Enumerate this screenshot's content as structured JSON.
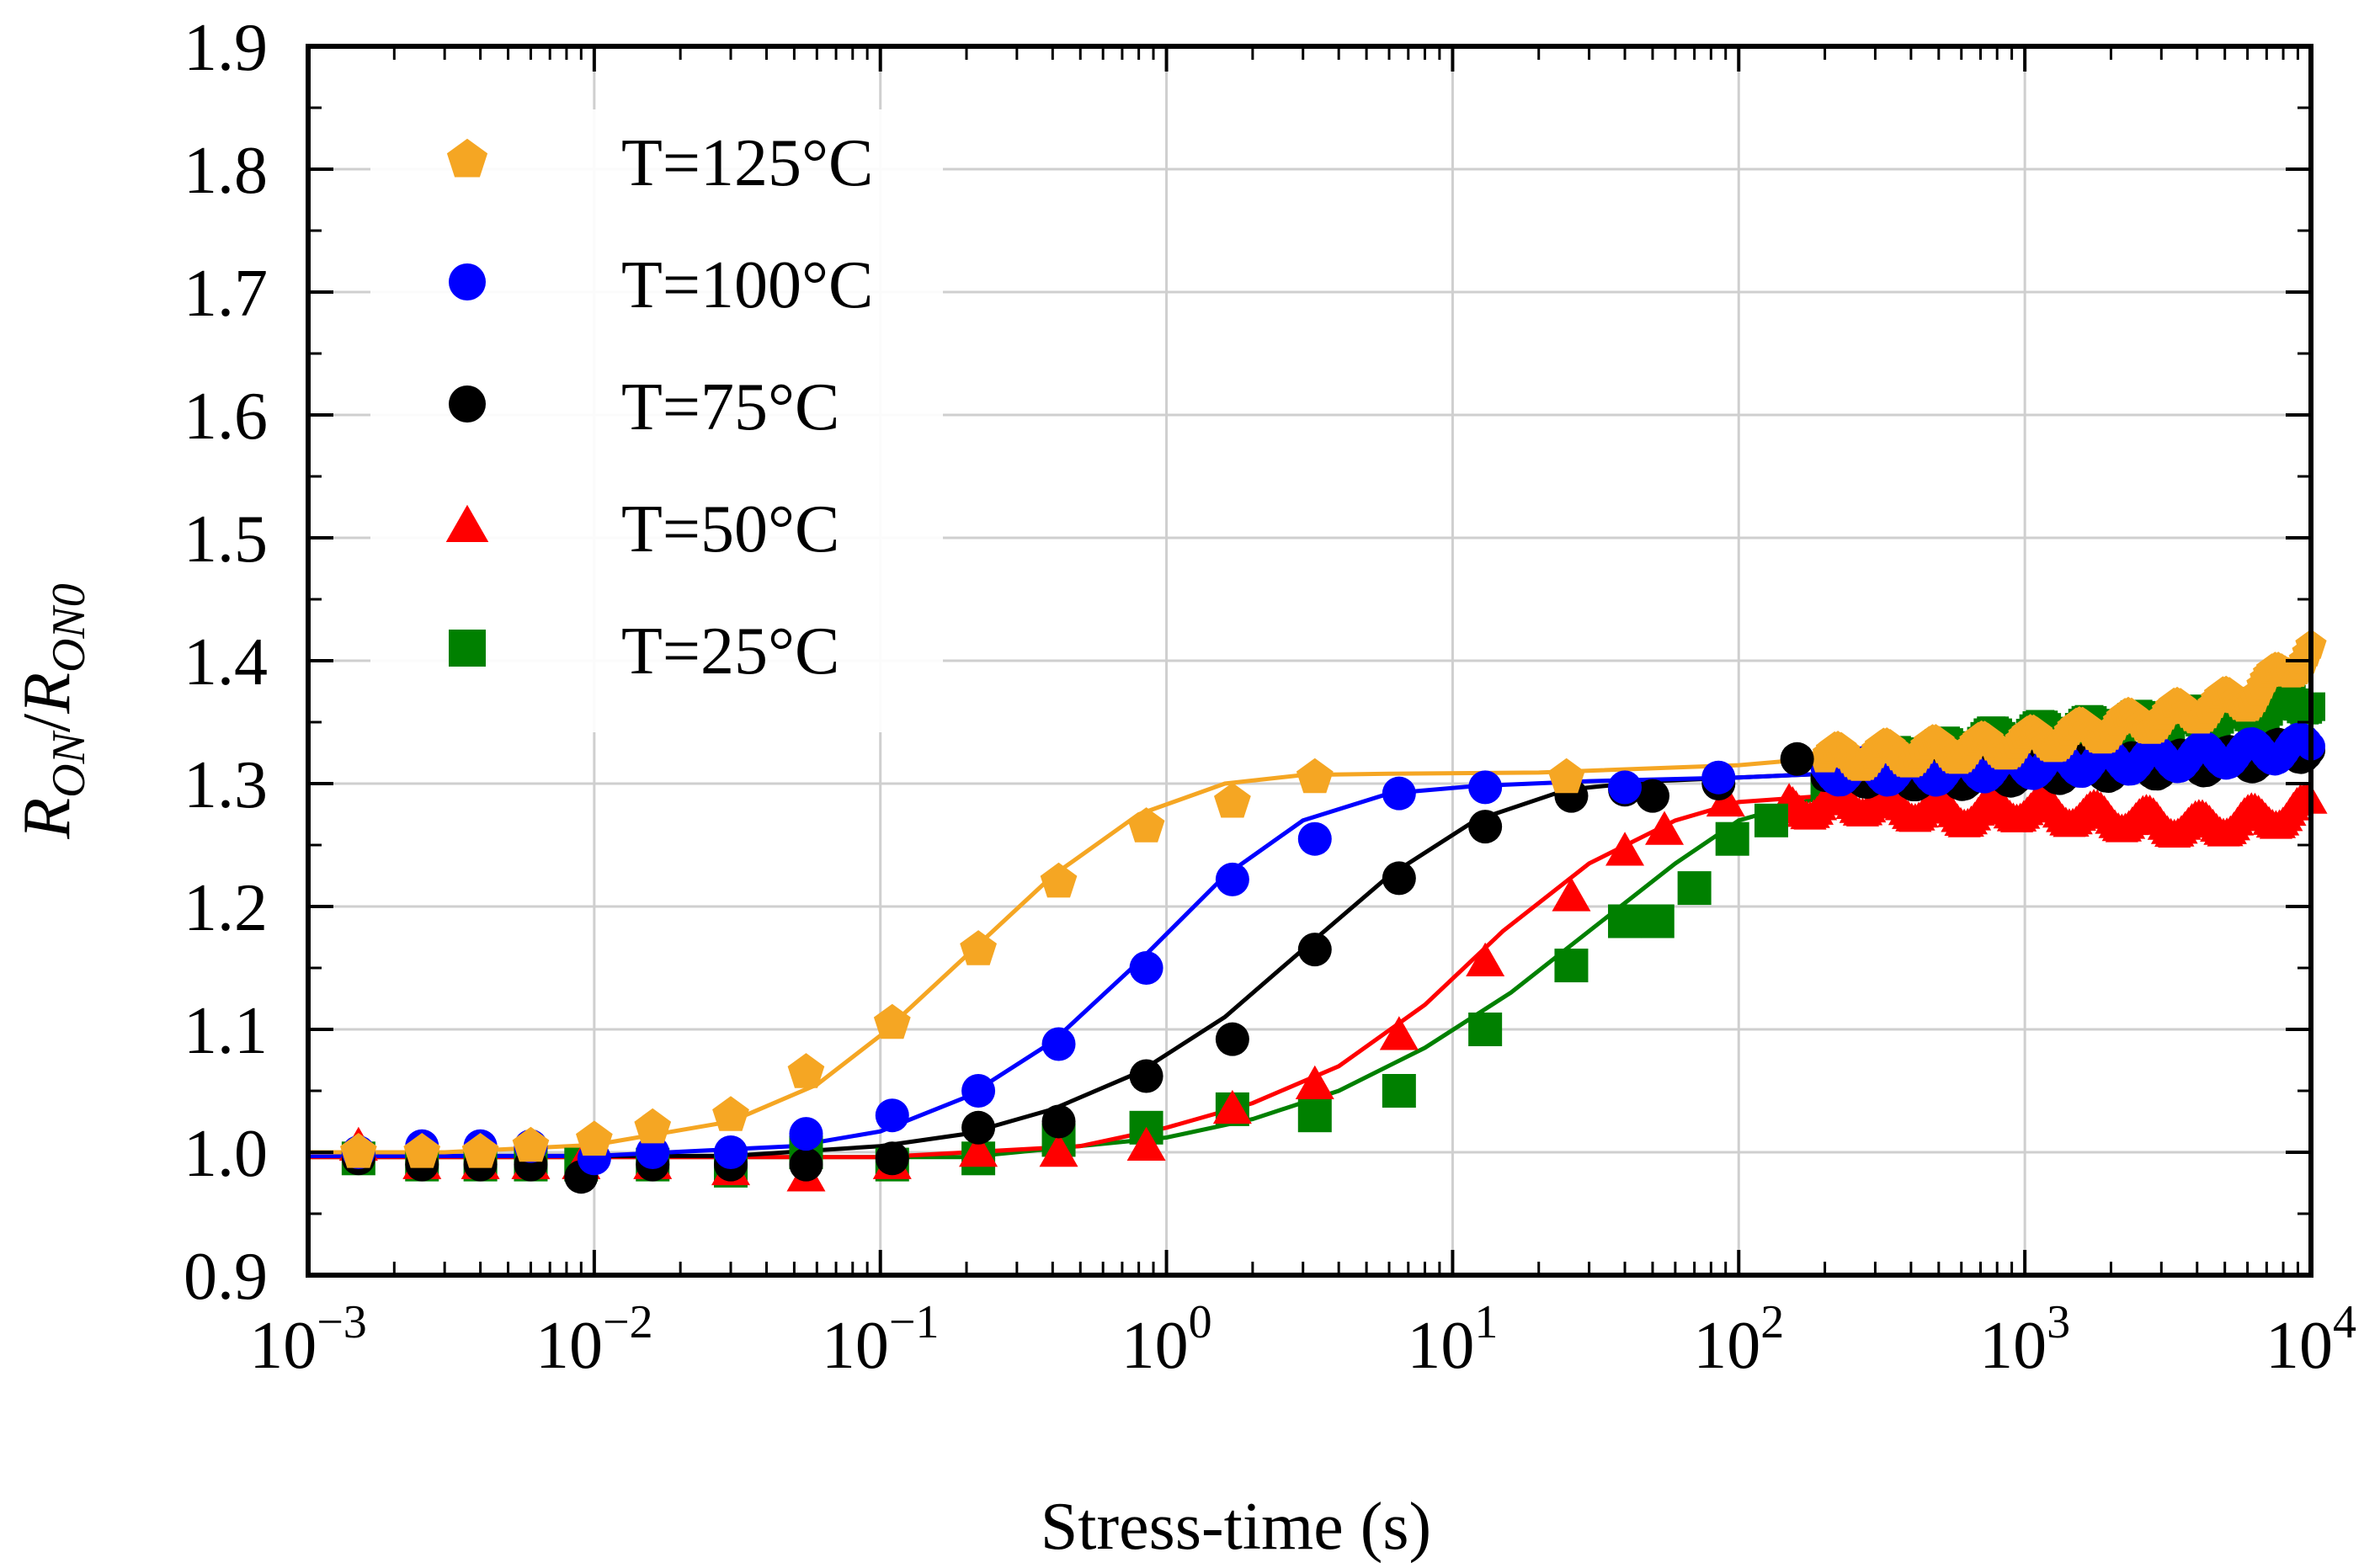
{
  "chart_data": {
    "type": "scatter",
    "title": "",
    "xlabel": "Stress-time (s)",
    "ylabel": {
      "base": "R",
      "sub1": "ON",
      "sep": "/",
      "sub2": "ON0"
    },
    "xscale": "log",
    "xlim": [
      0.001,
      10000
    ],
    "ylim": [
      0.9,
      1.9
    ],
    "grid": true,
    "legend_position": "top-left",
    "x_ticks": [
      {
        "value": 0.001,
        "base": "10",
        "exp": "−3"
      },
      {
        "value": 0.01,
        "base": "10",
        "exp": "−2"
      },
      {
        "value": 0.1,
        "base": "10",
        "exp": "−1"
      },
      {
        "value": 1,
        "base": "10",
        "exp": "0"
      },
      {
        "value": 10,
        "base": "10",
        "exp": "1"
      },
      {
        "value": 100,
        "base": "10",
        "exp": "2"
      },
      {
        "value": 1000,
        "base": "10",
        "exp": "3"
      },
      {
        "value": 10000,
        "base": "10",
        "exp": "4"
      }
    ],
    "y_ticks": [
      {
        "value": 0.9,
        "label": "0.9"
      },
      {
        "value": 1.0,
        "label": "1.0"
      },
      {
        "value": 1.1,
        "label": "1.1"
      },
      {
        "value": 1.2,
        "label": "1.2"
      },
      {
        "value": 1.3,
        "label": "1.3"
      },
      {
        "value": 1.4,
        "label": "1.4"
      },
      {
        "value": 1.5,
        "label": "1.5"
      },
      {
        "value": 1.6,
        "label": "1.6"
      },
      {
        "value": 1.7,
        "label": "1.7"
      },
      {
        "value": 1.8,
        "label": "1.8"
      },
      {
        "value": 1.9,
        "label": "1.9"
      }
    ],
    "series": [
      {
        "name": "T=125°C",
        "marker": "pentagon",
        "color": "#F5A623",
        "x": [
          0.0015,
          0.0025,
          0.004,
          0.006,
          0.01,
          0.016,
          0.03,
          0.055,
          0.11,
          0.22,
          0.42,
          0.85,
          1.7,
          3.3,
          25
        ],
        "y": [
          1.0,
          1.0,
          1.0,
          1.005,
          1.01,
          1.02,
          1.03,
          1.065,
          1.105,
          1.165,
          1.22,
          1.265,
          1.285,
          1.305,
          1.305
        ],
        "fit_x": [
          0.001,
          0.003,
          0.01,
          0.03,
          0.06,
          0.1,
          0.2,
          0.4,
          0.8,
          1.6,
          3,
          6,
          20,
          100,
          1000,
          10000
        ],
        "fit_y": [
          1.0,
          1.0,
          1.006,
          1.025,
          1.055,
          1.095,
          1.16,
          1.225,
          1.275,
          1.3,
          1.307,
          1.308,
          1.309,
          1.315,
          1.335,
          1.39
        ],
        "tail_x": [
          200,
          400,
          800,
          1500,
          2500,
          4000,
          6000,
          8000,
          10000
        ],
        "tail_y": [
          1.32,
          1.325,
          1.33,
          1.34,
          1.35,
          1.36,
          1.37,
          1.39,
          1.41
        ]
      },
      {
        "name": "T=100°C",
        "marker": "circle",
        "color": "#0000FF",
        "x": [
          0.0015,
          0.0025,
          0.004,
          0.006,
          0.01,
          0.016,
          0.03,
          0.055,
          0.11,
          0.22,
          0.42,
          0.85,
          1.7,
          3.3,
          6.5,
          13,
          40,
          85
        ],
        "y": [
          1.0,
          1.005,
          1.005,
          1.005,
          0.995,
          1.0,
          1.0,
          1.015,
          1.03,
          1.05,
          1.088,
          1.15,
          1.222,
          1.255,
          1.292,
          1.297,
          1.297,
          1.305
        ],
        "fit_x": [
          0.001,
          0.01,
          0.05,
          0.1,
          0.2,
          0.4,
          0.8,
          1.6,
          3,
          6,
          12,
          30,
          100,
          1000,
          10000
        ],
        "fit_y": [
          0.997,
          0.997,
          1.005,
          1.017,
          1.045,
          1.09,
          1.155,
          1.225,
          1.27,
          1.292,
          1.298,
          1.302,
          1.305,
          1.315,
          1.335
        ],
        "tail_x": [
          200,
          500,
          1000,
          3000,
          6000,
          10000
        ],
        "tail_y": [
          1.31,
          1.31,
          1.315,
          1.32,
          1.325,
          1.33
        ]
      },
      {
        "name": "T=75°C",
        "marker": "circle",
        "color": "#000000",
        "x": [
          0.0015,
          0.0025,
          0.004,
          0.006,
          0.009,
          0.016,
          0.03,
          0.055,
          0.11,
          0.22,
          0.42,
          0.85,
          1.7,
          3.3,
          6.5,
          13,
          26,
          40,
          50,
          85,
          160
        ],
        "y": [
          0.995,
          0.99,
          0.99,
          0.99,
          0.98,
          0.99,
          0.99,
          0.99,
          0.995,
          1.02,
          1.025,
          1.062,
          1.092,
          1.165,
          1.223,
          1.265,
          1.29,
          1.295,
          1.29,
          1.3,
          1.32
        ],
        "fit_x": [
          0.001,
          0.03,
          0.1,
          0.2,
          0.4,
          0.8,
          1.6,
          3,
          6,
          12,
          25,
          50,
          100,
          1000,
          10000
        ],
        "fit_y": [
          0.997,
          0.997,
          1.005,
          1.015,
          1.035,
          1.065,
          1.11,
          1.165,
          1.225,
          1.27,
          1.295,
          1.302,
          1.305,
          1.315,
          1.345
        ],
        "tail_x": [
          200,
          500,
          1000,
          3000,
          6000,
          10000
        ],
        "tail_y": [
          1.31,
          1.305,
          1.31,
          1.315,
          1.32,
          1.33
        ]
      },
      {
        "name": "T=50°C",
        "marker": "triangle",
        "color": "#FF0000",
        "x": [
          0.0015,
          0.0025,
          0.004,
          0.006,
          0.009,
          0.016,
          0.03,
          0.055,
          0.11,
          0.22,
          0.42,
          0.85,
          1.7,
          3.3,
          6.5,
          13,
          26,
          40,
          55,
          90
        ],
        "y": [
          1.005,
          0.99,
          0.99,
          0.99,
          0.99,
          0.99,
          0.985,
          0.98,
          0.99,
          1.0,
          1.0,
          1.005,
          1.035,
          1.055,
          1.095,
          1.155,
          1.208,
          1.245,
          1.262,
          1.285
        ],
        "fit_x": [
          0.001,
          0.1,
          0.5,
          1,
          2,
          4,
          8,
          15,
          30,
          60,
          100,
          200
        ],
        "fit_y": [
          0.996,
          0.996,
          1.005,
          1.02,
          1.04,
          1.07,
          1.12,
          1.18,
          1.235,
          1.27,
          1.285,
          1.29
        ],
        "tail_x": [
          150,
          250,
          400,
          600,
          1000,
          1500,
          2500,
          4000,
          6000,
          8000,
          10000
        ],
        "tail_y": [
          1.28,
          1.285,
          1.28,
          1.275,
          1.28,
          1.275,
          1.27,
          1.265,
          1.27,
          1.275,
          1.28
        ]
      },
      {
        "name": "T=25°C",
        "marker": "square",
        "color": "#008000",
        "x": [
          0.0015,
          0.0025,
          0.004,
          0.006,
          0.009,
          0.016,
          0.03,
          0.055,
          0.11,
          0.22,
          0.42,
          0.85,
          1.7,
          3.3,
          6.5,
          13,
          26,
          40,
          52,
          70,
          95,
          130
        ],
        "y": [
          0.995,
          0.99,
          0.99,
          0.99,
          0.99,
          0.99,
          0.985,
          1.0,
          0.99,
          0.995,
          1.01,
          1.02,
          1.035,
          1.03,
          1.05,
          1.1,
          1.152,
          1.188,
          1.188,
          1.215,
          1.255,
          1.27
        ],
        "fit_x": [
          0.001,
          0.2,
          1,
          2,
          4,
          8,
          16,
          30,
          60,
          100,
          200,
          1000,
          10000
        ],
        "fit_y": [
          0.996,
          0.996,
          1.012,
          1.027,
          1.05,
          1.085,
          1.13,
          1.18,
          1.235,
          1.27,
          1.29,
          1.31,
          1.34
        ],
        "tail_x": [
          200,
          300,
          500,
          800,
          1200,
          2000,
          3000,
          5000,
          7000,
          10000
        ],
        "tail_y": [
          1.305,
          1.315,
          1.325,
          1.335,
          1.34,
          1.345,
          1.35,
          1.355,
          1.36,
          1.37
        ]
      }
    ]
  }
}
